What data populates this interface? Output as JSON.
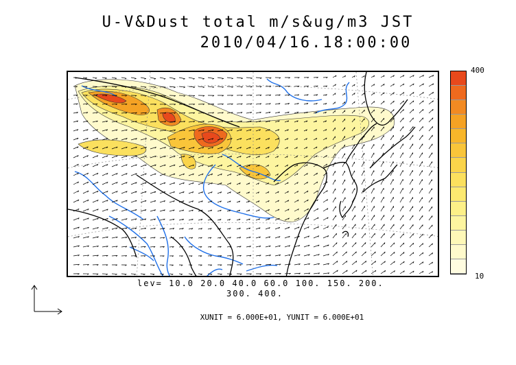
{
  "title": {
    "line1": "U-V&Dust total m/s&ug/m3 JST",
    "line2": "2010/04/16.18:00:00"
  },
  "colorbar": {
    "max_label": "400",
    "min_label": "10",
    "colors": [
      "#e8491c",
      "#ef6a1e",
      "#f28a22",
      "#f5a224",
      "#f8b62a",
      "#f9c53a",
      "#fad44a",
      "#fbe05e",
      "#fce970",
      "#fdf088",
      "#fdf5a0",
      "#fef8b8",
      "#fffacc",
      "#fffce0"
    ]
  },
  "levels": {
    "line1": "lev= 10.0 20.0 40.0 60.0 100. 150. 200.",
    "line2": "300. 400."
  },
  "units": {
    "text": "XUNIT = 6.000E+01, YUNIT = 6.000E+01"
  },
  "map": {
    "land_outline_color": "#000000",
    "river_color": "#1e6fe8",
    "grid_color": "#888888",
    "arrow_color": "#000000"
  }
}
